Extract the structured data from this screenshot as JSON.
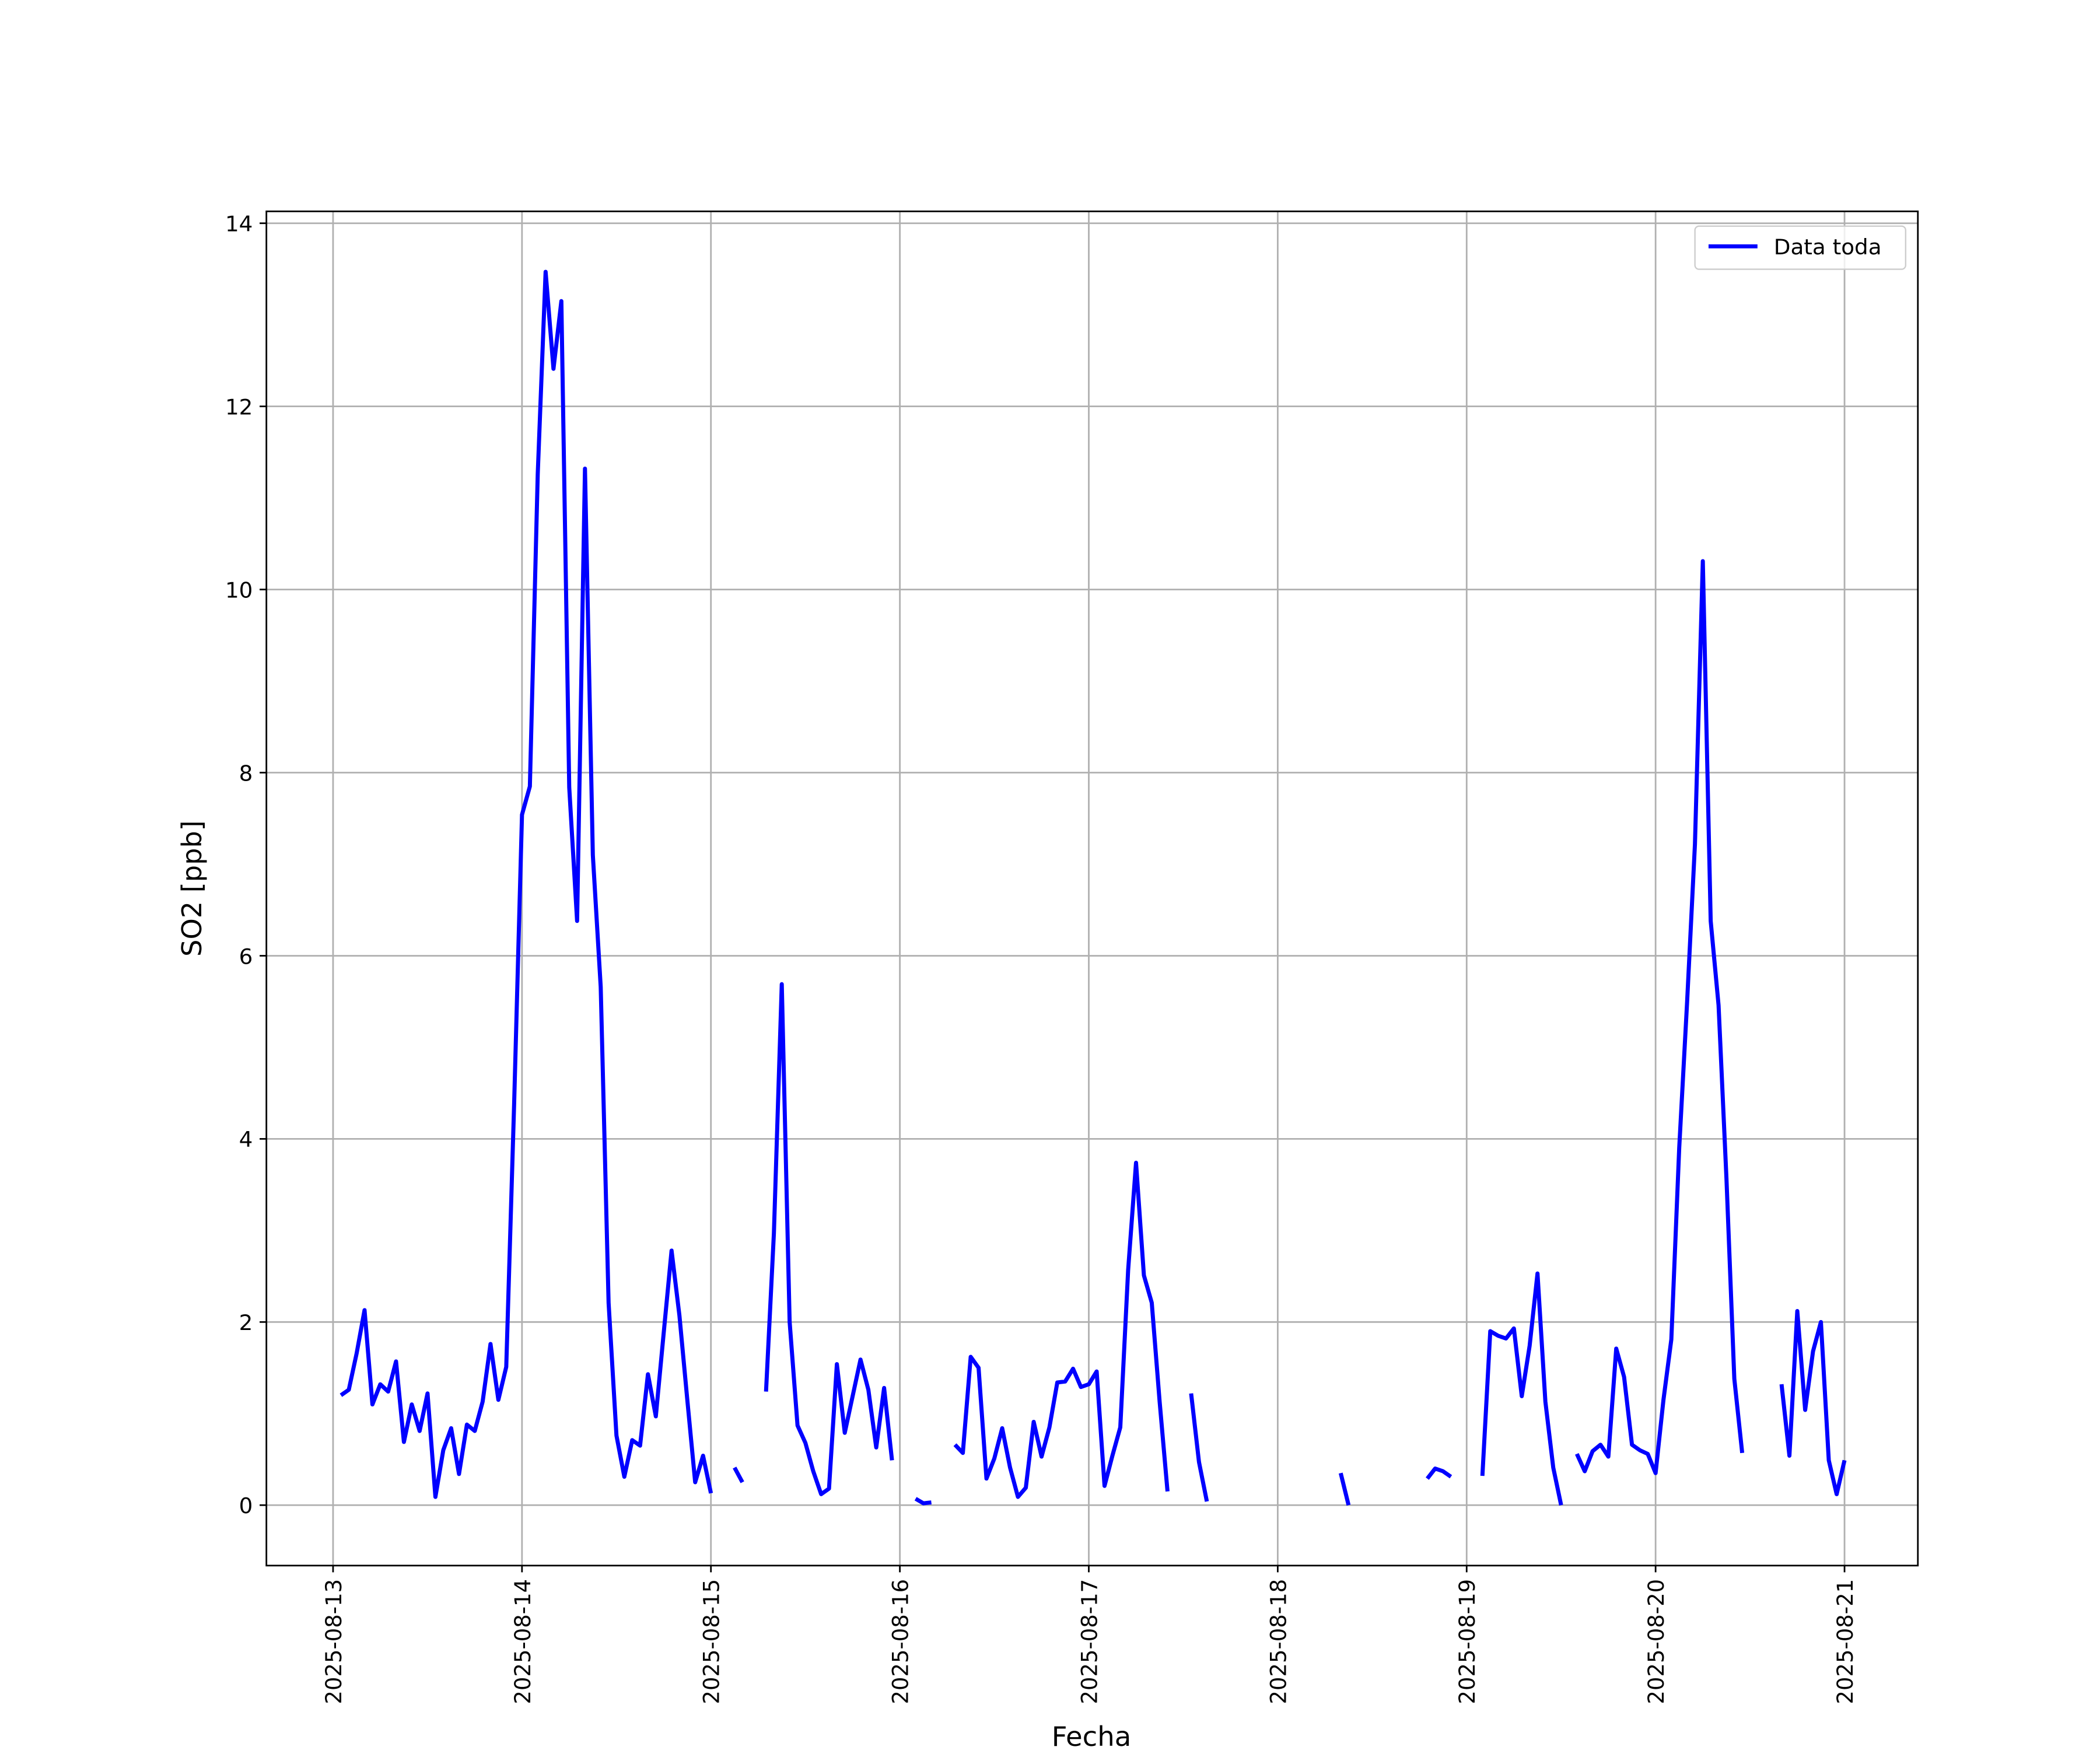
{
  "chart_data": {
    "type": "line",
    "xlabel": "Fecha",
    "ylabel": "SO2 [ppb]",
    "x": [
      "2025-08-13 01:00",
      "2025-08-13 02:00",
      "2025-08-13 03:00",
      "2025-08-13 04:00",
      "2025-08-13 05:00",
      "2025-08-13 06:00",
      "2025-08-13 07:00",
      "2025-08-13 08:00",
      "2025-08-13 09:00",
      "2025-08-13 10:00",
      "2025-08-13 11:00",
      "2025-08-13 12:00",
      "2025-08-13 13:00",
      "2025-08-13 14:00",
      "2025-08-13 15:00",
      "2025-08-13 16:00",
      "2025-08-13 17:00",
      "2025-08-13 18:00",
      "2025-08-13 19:00",
      "2025-08-13 20:00",
      "2025-08-13 21:00",
      "2025-08-13 22:00",
      "2025-08-13 23:00",
      "2025-08-14 00:00",
      "2025-08-14 01:00",
      "2025-08-14 02:00",
      "2025-08-14 03:00",
      "2025-08-14 04:00",
      "2025-08-14 05:00",
      "2025-08-14 06:00",
      "2025-08-14 07:00",
      "2025-08-14 08:00",
      "2025-08-14 09:00",
      "2025-08-14 10:00",
      "2025-08-14 11:00",
      "2025-08-14 12:00",
      "2025-08-14 13:00",
      "2025-08-14 14:00",
      "2025-08-14 15:00",
      "2025-08-14 16:00",
      "2025-08-14 17:00",
      "2025-08-14 18:00",
      "2025-08-14 19:00",
      "2025-08-14 20:00",
      "2025-08-14 21:00",
      "2025-08-14 22:00",
      "2025-08-14 23:00",
      "2025-08-15 00:00",
      "2025-08-15 01:00",
      "2025-08-15 02:00",
      "2025-08-15 03:00",
      "2025-08-15 04:00",
      "2025-08-15 05:00",
      "2025-08-15 06:00",
      "2025-08-15 07:00",
      "2025-08-15 08:00",
      "2025-08-15 09:00",
      "2025-08-15 10:00",
      "2025-08-15 11:00",
      "2025-08-15 12:00",
      "2025-08-15 13:00",
      "2025-08-15 14:00",
      "2025-08-15 15:00",
      "2025-08-15 16:00",
      "2025-08-15 17:00",
      "2025-08-15 18:00",
      "2025-08-15 19:00",
      "2025-08-15 20:00",
      "2025-08-15 21:00",
      "2025-08-15 22:00",
      "2025-08-15 23:00",
      "2025-08-16 00:00",
      "2025-08-16 01:00",
      "2025-08-16 02:00",
      "2025-08-16 03:00",
      "2025-08-16 04:00",
      "2025-08-16 05:00",
      "2025-08-16 06:00",
      "2025-08-16 07:00",
      "2025-08-16 08:00",
      "2025-08-16 09:00",
      "2025-08-16 10:00",
      "2025-08-16 11:00",
      "2025-08-16 12:00",
      "2025-08-16 13:00",
      "2025-08-16 14:00",
      "2025-08-16 15:00",
      "2025-08-16 16:00",
      "2025-08-16 17:00",
      "2025-08-16 18:00",
      "2025-08-16 19:00",
      "2025-08-16 20:00",
      "2025-08-16 21:00",
      "2025-08-16 22:00",
      "2025-08-16 23:00",
      "2025-08-17 00:00",
      "2025-08-17 01:00",
      "2025-08-17 02:00",
      "2025-08-17 03:00",
      "2025-08-17 04:00",
      "2025-08-17 05:00",
      "2025-08-17 06:00",
      "2025-08-17 07:00",
      "2025-08-17 08:00",
      "2025-08-17 09:00",
      "2025-08-17 10:00",
      "2025-08-17 11:00",
      "2025-08-17 12:00",
      "2025-08-17 13:00",
      "2025-08-17 14:00",
      "2025-08-17 15:00",
      "2025-08-17 16:00",
      "2025-08-17 17:00",
      "2025-08-17 18:00",
      "2025-08-17 19:00",
      "2025-08-17 20:00",
      "2025-08-17 21:00",
      "2025-08-17 22:00",
      "2025-08-17 23:00",
      "2025-08-18 00:00",
      "2025-08-18 01:00",
      "2025-08-18 02:00",
      "2025-08-18 03:00",
      "2025-08-18 04:00",
      "2025-08-18 05:00",
      "2025-08-18 06:00",
      "2025-08-18 07:00",
      "2025-08-18 08:00",
      "2025-08-18 09:00",
      "2025-08-18 10:00",
      "2025-08-18 11:00",
      "2025-08-18 12:00",
      "2025-08-18 13:00",
      "2025-08-18 14:00",
      "2025-08-18 15:00",
      "2025-08-18 16:00",
      "2025-08-18 17:00",
      "2025-08-18 18:00",
      "2025-08-18 19:00",
      "2025-08-18 20:00",
      "2025-08-18 21:00",
      "2025-08-18 22:00",
      "2025-08-18 23:00",
      "2025-08-19 00:00",
      "2025-08-19 01:00",
      "2025-08-19 02:00",
      "2025-08-19 03:00",
      "2025-08-19 04:00",
      "2025-08-19 05:00",
      "2025-08-19 06:00",
      "2025-08-19 07:00",
      "2025-08-19 08:00",
      "2025-08-19 09:00",
      "2025-08-19 10:00",
      "2025-08-19 11:00",
      "2025-08-19 12:00",
      "2025-08-19 13:00",
      "2025-08-19 14:00",
      "2025-08-19 15:00",
      "2025-08-19 16:00",
      "2025-08-19 17:00",
      "2025-08-19 18:00",
      "2025-08-19 19:00",
      "2025-08-19 20:00",
      "2025-08-19 21:00",
      "2025-08-19 22:00",
      "2025-08-19 23:00",
      "2025-08-20 00:00",
      "2025-08-20 01:00",
      "2025-08-20 02:00",
      "2025-08-20 03:00",
      "2025-08-20 04:00",
      "2025-08-20 05:00",
      "2025-08-20 06:00",
      "2025-08-20 07:00",
      "2025-08-20 08:00",
      "2025-08-20 09:00",
      "2025-08-20 10:00",
      "2025-08-20 11:00",
      "2025-08-20 12:00",
      "2025-08-20 13:00",
      "2025-08-20 14:00",
      "2025-08-20 15:00",
      "2025-08-20 16:00",
      "2025-08-20 17:00",
      "2025-08-20 18:00",
      "2025-08-20 19:00",
      "2025-08-20 20:00",
      "2025-08-20 21:00",
      "2025-08-20 22:00",
      "2025-08-20 23:00",
      "2025-08-21 00:00"
    ],
    "series": [
      {
        "name": "Data toda",
        "color": "#0000ff",
        "values": [
          1.2,
          1.26,
          1.66,
          2.13,
          1.1,
          1.32,
          1.24,
          1.57,
          0.69,
          1.1,
          0.81,
          1.22,
          0.09,
          0.6,
          0.84,
          0.34,
          0.88,
          0.81,
          1.13,
          1.76,
          1.15,
          1.51,
          4.38,
          7.54,
          7.85,
          11.26,
          13.47,
          12.41,
          13.15,
          7.84,
          6.38,
          11.32,
          7.1,
          5.66,
          2.21,
          0.76,
          0.31,
          0.71,
          0.65,
          1.43,
          0.97,
          1.88,
          2.78,
          2.07,
          1.15,
          0.25,
          0.54,
          0.13,
          null,
          null,
          0.41,
          0.25,
          null,
          null,
          1.24,
          2.97,
          5.69,
          2.0,
          0.87,
          0.68,
          0.37,
          0.12,
          0.18,
          1.54,
          0.79,
          1.19,
          1.59,
          1.26,
          0.63,
          1.28,
          0.49,
          null,
          null,
          0.07,
          0.02,
          0.03,
          null,
          null,
          0.66,
          0.57,
          1.62,
          1.5,
          0.29,
          0.51,
          0.84,
          0.41,
          0.09,
          0.19,
          0.91,
          0.53,
          0.85,
          1.34,
          1.35,
          1.49,
          1.29,
          1.32,
          1.46,
          0.21,
          0.54,
          0.85,
          2.57,
          3.74,
          2.51,
          2.21,
          1.13,
          0.15,
          null,
          null,
          1.22,
          0.47,
          0.04,
          null,
          null,
          null,
          null,
          null,
          null,
          null,
          null,
          null,
          null,
          null,
          null,
          null,
          null,
          null,
          null,
          0.35,
          0,
          null,
          null,
          null,
          null,
          null,
          null,
          null,
          null,
          null,
          0.29,
          0.4,
          0.37,
          0.31,
          null,
          null,
          null,
          0.32,
          1.9,
          1.85,
          1.82,
          1.93,
          1.19,
          1.74,
          2.53,
          1.13,
          0.41,
          0,
          null,
          0.56,
          0.37,
          0.59,
          0.66,
          0.53,
          1.71,
          1.4,
          0.66,
          0.6,
          0.56,
          0.35,
          1.15,
          1.81,
          3.9,
          5.49,
          7.22,
          10.31,
          6.38,
          5.46,
          3.57,
          1.38,
          0.57,
          null,
          null,
          null,
          null,
          1.32,
          0.54,
          2.12,
          1.04,
          1.68,
          2.0,
          0.49,
          0.12,
          0.49
        ]
      }
    ],
    "xlim": [
      "2025-08-12 15:32",
      "2025-08-21 09:19"
    ],
    "xticks": [
      "2025-08-13",
      "2025-08-14",
      "2025-08-15",
      "2025-08-16",
      "2025-08-17",
      "2025-08-18",
      "2025-08-19",
      "2025-08-20",
      "2025-08-21"
    ],
    "ylim": [
      -0.66,
      14.13
    ],
    "yticks": [
      0,
      2,
      4,
      6,
      8,
      10,
      12,
      14
    ],
    "grid": true,
    "legend": "upper right"
  }
}
